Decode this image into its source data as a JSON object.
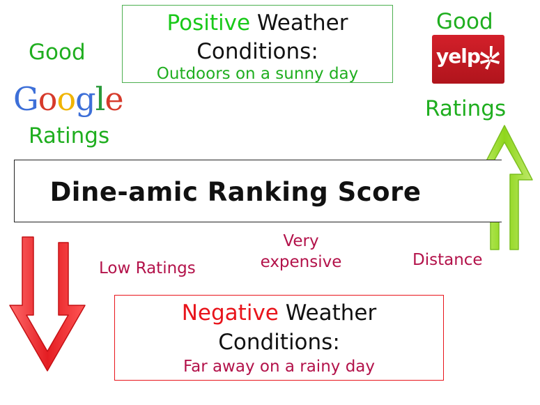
{
  "google": {
    "good_label": "Good",
    "logo_text": [
      "G",
      "o",
      "o",
      "g",
      "l",
      "e"
    ],
    "logo_colors": [
      "#3d6fd8",
      "#d63a2b",
      "#f0b400",
      "#3d6fd8",
      "#2a9a3a",
      "#d63a2b"
    ],
    "ratings_label": "Ratings"
  },
  "yelp": {
    "good_label": "Good",
    "logo_text": "yelp",
    "ratings_label": "Ratings"
  },
  "positive_weather": {
    "highlight": "Positive",
    "rest": " Weather",
    "line2": "Conditions:",
    "line3": "Outdoors on a sunny day"
  },
  "score": {
    "title": "Dine-amic Ranking Score"
  },
  "factors": {
    "low_ratings": "Low Ratings",
    "very": "Very",
    "expensive": "expensive",
    "distance": "Distance"
  },
  "negative_weather": {
    "highlight": "Negative",
    "rest": " Weather",
    "line2": "Conditions:",
    "line3": "Far away on a rainy day"
  },
  "colors": {
    "up_arrow": "#9be030",
    "down_arrow": "#e8262b",
    "positive": "#19c919",
    "negative": "#e8141b",
    "factor_text": "#b3124a"
  }
}
